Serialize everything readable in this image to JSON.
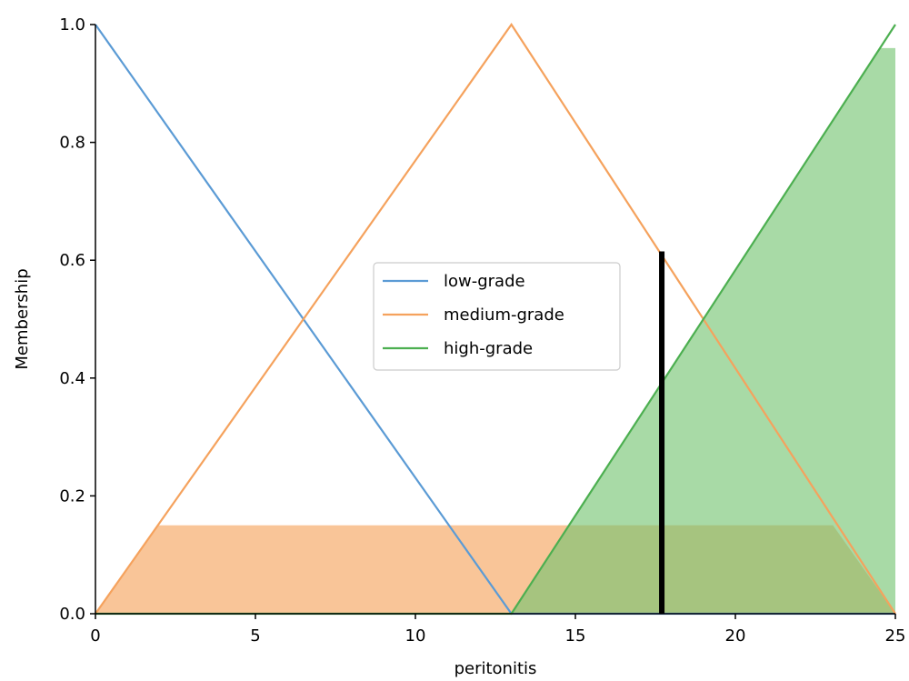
{
  "chart_data": {
    "type": "line",
    "xlabel": "peritonitis",
    "ylabel": "Membership",
    "xlim": [
      0,
      25
    ],
    "ylim": [
      0,
      1
    ],
    "x_ticks": [
      "0",
      "5",
      "10",
      "15",
      "20",
      "25"
    ],
    "y_ticks": [
      "0.0",
      "0.2",
      "0.4",
      "0.6",
      "0.8",
      "1.0"
    ],
    "grid": false,
    "legend_position": "center-right",
    "series": [
      {
        "name": "low-grade",
        "color": "#5b9bd5",
        "x": [
          0,
          13,
          25
        ],
        "y": [
          1,
          0,
          0
        ]
      },
      {
        "name": "medium-grade",
        "color": "#f5a25d",
        "x": [
          0,
          13,
          25
        ],
        "y": [
          0,
          1,
          0
        ]
      },
      {
        "name": "high-grade",
        "color": "#4caf50",
        "x": [
          0,
          13,
          25
        ],
        "y": [
          0,
          0,
          1
        ]
      }
    ],
    "fills": [
      {
        "name": "medium-grade",
        "color": "#f8bb86",
        "opacity": 0.85,
        "x": [
          0,
          1.95,
          23.05,
          25
        ],
        "y": [
          0,
          0.15,
          0.15,
          0
        ]
      },
      {
        "name": "high-grade",
        "color": "#73c470",
        "opacity": 0.62,
        "x": [
          13,
          24.5,
          25,
          25
        ],
        "y": [
          0,
          0.96,
          0.96,
          0
        ]
      }
    ],
    "marker": {
      "x": 17.7,
      "y": [
        0,
        0.615
      ],
      "color": "#000000"
    }
  }
}
